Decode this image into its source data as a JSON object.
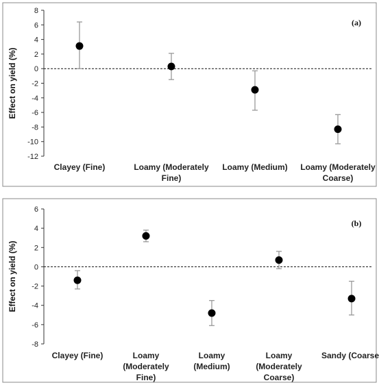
{
  "chart_data": [
    {
      "type": "scatter",
      "panel_label": "(a)",
      "ylabel": "Effect on yield (%)",
      "ylim": [
        -12,
        8
      ],
      "yticks": [
        8,
        6,
        4,
        2,
        0,
        -2,
        -4,
        -6,
        -8,
        -10,
        -12
      ],
      "reference_line": {
        "y": 0,
        "style": "dashed"
      },
      "categories": [
        [
          "Clayey (Fine)"
        ],
        [
          "Loamy (Moderately",
          "Fine)"
        ],
        [
          "Loamy (Medium)"
        ],
        [
          "Loamy (Moderately",
          "Coarse)"
        ]
      ],
      "values": [
        3.1,
        0.3,
        -2.9,
        -8.3
      ],
      "error_low": [
        0.0,
        -1.5,
        -5.7,
        -10.3
      ],
      "error_high": [
        6.4,
        2.1,
        -0.3,
        -6.3
      ]
    },
    {
      "type": "scatter",
      "panel_label": "(b)",
      "ylabel": "Effect on yield (%)",
      "ylim": [
        -8,
        6
      ],
      "yticks": [
        6,
        4,
        2,
        0,
        -2,
        -4,
        -6,
        -8
      ],
      "reference_line": {
        "y": 0,
        "style": "dashed"
      },
      "categories": [
        [
          "Clayey (Fine)"
        ],
        [
          "Loamy",
          "(Moderately",
          "Fine)"
        ],
        [
          "Loamy",
          "(Medium)"
        ],
        [
          "Loamy",
          "(Moderately",
          "Coarse)"
        ],
        [
          "Sandy (Coarse)"
        ]
      ],
      "values": [
        -1.4,
        3.2,
        -4.8,
        0.7,
        -3.3
      ],
      "error_low": [
        -2.3,
        2.6,
        -6.1,
        -0.2,
        -5.0
      ],
      "error_high": [
        -0.4,
        3.8,
        -3.5,
        1.6,
        -1.5
      ]
    }
  ]
}
